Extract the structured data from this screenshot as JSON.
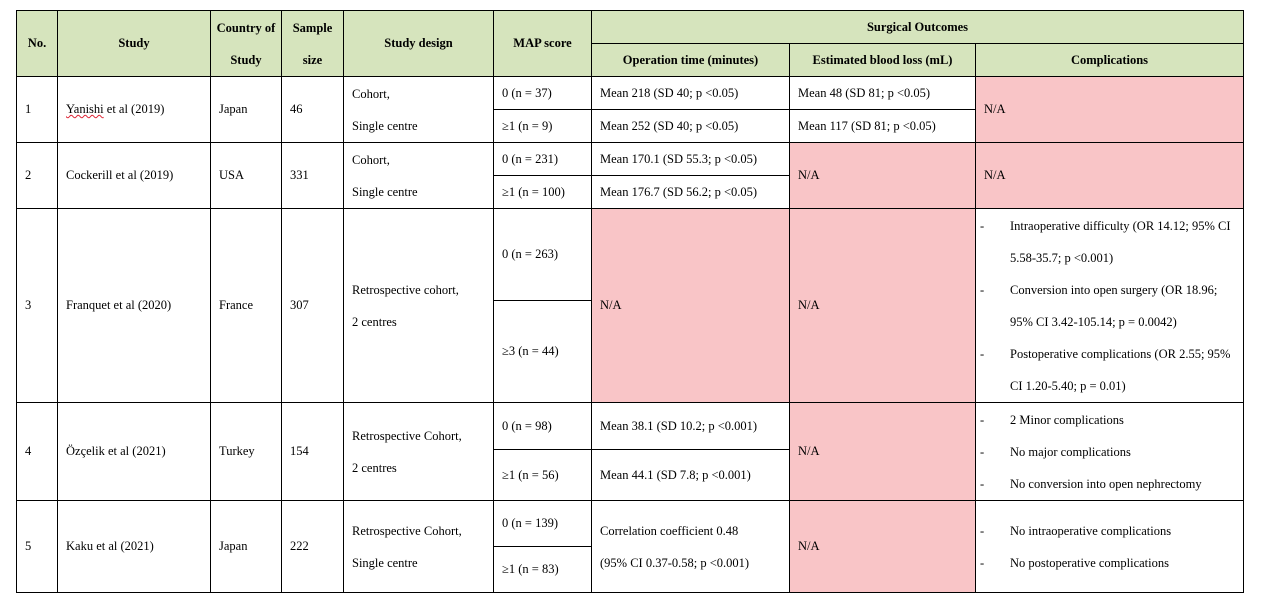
{
  "headers": {
    "no": "No.",
    "study": "Study",
    "country": "Country of Study",
    "sample": "Sample size",
    "design": "Study design",
    "map": "MAP score",
    "surgical": "Surgical Outcomes",
    "op_time": "Operation time (minutes)",
    "blood_loss": "Estimated blood loss (mL)",
    "complications": "Complications"
  },
  "rows": [
    {
      "no": "1",
      "study_a": "Yanishi",
      "study_b": " et al (2019)",
      "country": "Japan",
      "sample": "46",
      "design_1": "Cohort,",
      "design_2": "Single centre",
      "map_1": "0 (n = 37)",
      "map_2": "≥1 (n = 9)",
      "op_1": "Mean 218 (SD 40; p <0.05)",
      "op_2": "Mean 252 (SD 40; p <0.05)",
      "bl_1": "Mean 48 (SD 81; p <0.05)",
      "bl_2": "Mean 117 (SD 81; p <0.05)",
      "comp": "N/A"
    },
    {
      "no": "2",
      "study": "Cockerill et al (2019)",
      "country": "USA",
      "sample": "331",
      "design_1": "Cohort,",
      "design_2": "Single centre",
      "map_1": "0 (n = 231)",
      "map_2": "≥1 (n = 100)",
      "op_1": "Mean 170.1 (SD 55.3; p <0.05)",
      "op_2": "Mean 176.7 (SD 56.2; p <0.05)",
      "bl": "N/A",
      "comp": "N/A"
    },
    {
      "no": "3",
      "study": "Franquet et al (2020)",
      "country": "France",
      "sample": "307",
      "design_1": "Retrospective cohort,",
      "design_2": "2 centres",
      "map_1": "0 (n = 263)",
      "map_2": "≥3 (n = 44)",
      "op": "N/A",
      "bl": "N/A",
      "comp": [
        "Intraoperative difficulty (OR 14.12; 95% CI 5.58-35.7; p <0.001)",
        "Conversion into open surgery (OR 18.96; 95% CI 3.42-105.14; p = 0.0042)",
        "Postoperative complications (OR 2.55; 95% CI 1.20-5.40; p = 0.01)"
      ]
    },
    {
      "no": "4",
      "study": "Özçelik et al (2021)",
      "country": "Turkey",
      "sample": "154",
      "design_1": "Retrospective Cohort,",
      "design_2": "2 centres",
      "map_1": "0 (n = 98)",
      "map_2": "≥1 (n = 56)",
      "op_1": "Mean 38.1 (SD 10.2; p <0.001)",
      "op_2": "Mean 44.1 (SD 7.8; p <0.001)",
      "bl": "N/A",
      "comp": [
        "2 Minor complications",
        "No major complications",
        "No conversion into open nephrectomy"
      ]
    },
    {
      "no": "5",
      "study": "Kaku et al (2021)",
      "country": "Japan",
      "sample": "222",
      "design_1": "Retrospective Cohort,",
      "design_2": "Single centre",
      "map_1": "0 (n = 139)",
      "map_2": "≥1 (n = 83)",
      "op_1": "Correlation coefficient 0.48",
      "op_2": "(95% CI 0.37-0.58; p <0.001)",
      "bl": "N/A",
      "comp": [
        "No intraoperative complications",
        "No postoperative complications"
      ]
    }
  ],
  "dash": "-",
  "colors": {
    "header_bg": "#d6e4bd",
    "na_bg": "#f9c5c7"
  }
}
